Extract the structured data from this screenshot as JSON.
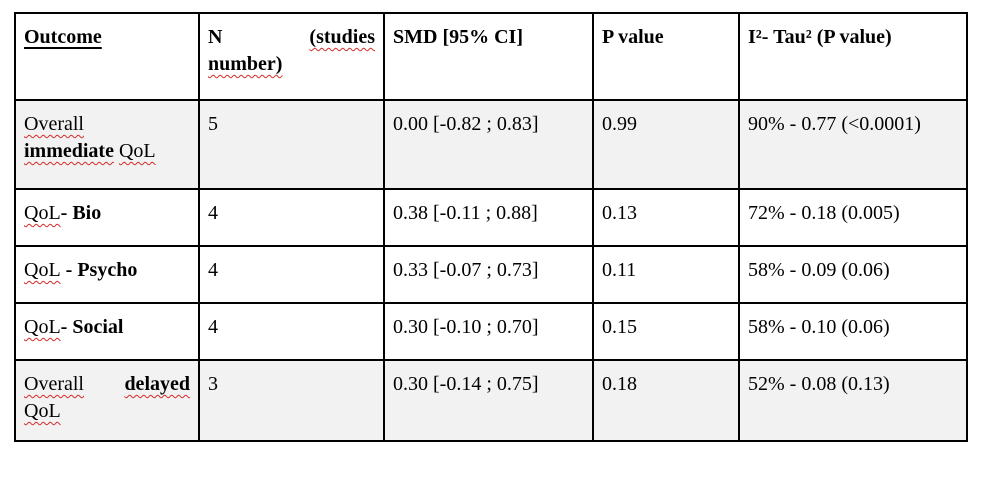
{
  "header": {
    "outcome": "Outcome",
    "n_part1": "N",
    "n_part2": "(studies",
    "n_part3": "number)",
    "smd": "SMD [95% CI]",
    "p_value": "P value",
    "i2_tau2": "I²- Tau² (P value)"
  },
  "rows": [
    {
      "outcome_a": "Overall",
      "outcome_b": "immediate",
      "outcome_c": "QoL",
      "n": "5",
      "smd": "0.00 [-0.82 ; 0.83]",
      "p": "0.99",
      "i2": "90% - 0.77 (<0.0001)"
    },
    {
      "outcome_a": "QoL",
      "outcome_b": "- Bio",
      "n": "4",
      "smd": "0.38 [-0.11 ; 0.88]",
      "p": "0.13",
      "i2": "72% - 0.18 (0.005)"
    },
    {
      "outcome_a": "QoL",
      "outcome_b": " - Psycho",
      "n": "4",
      "smd": "0.33 [-0.07 ; 0.73]",
      "p": "0.11",
      "i2": "58% - 0.09 (0.06)"
    },
    {
      "outcome_a": "QoL",
      "outcome_b": "- Social",
      "n": "4",
      "smd": "0.30 [-0.10 ; 0.70]",
      "p": "0.15",
      "i2": "58% - 0.10 (0.06)"
    },
    {
      "outcome_a": "Overall",
      "outcome_b": "delayed",
      "outcome_c": "QoL",
      "n": "3",
      "smd": "0.30 [-0.14 ; 0.75]",
      "p": "0.18",
      "i2": "52% - 0.08 (0.13)"
    }
  ]
}
